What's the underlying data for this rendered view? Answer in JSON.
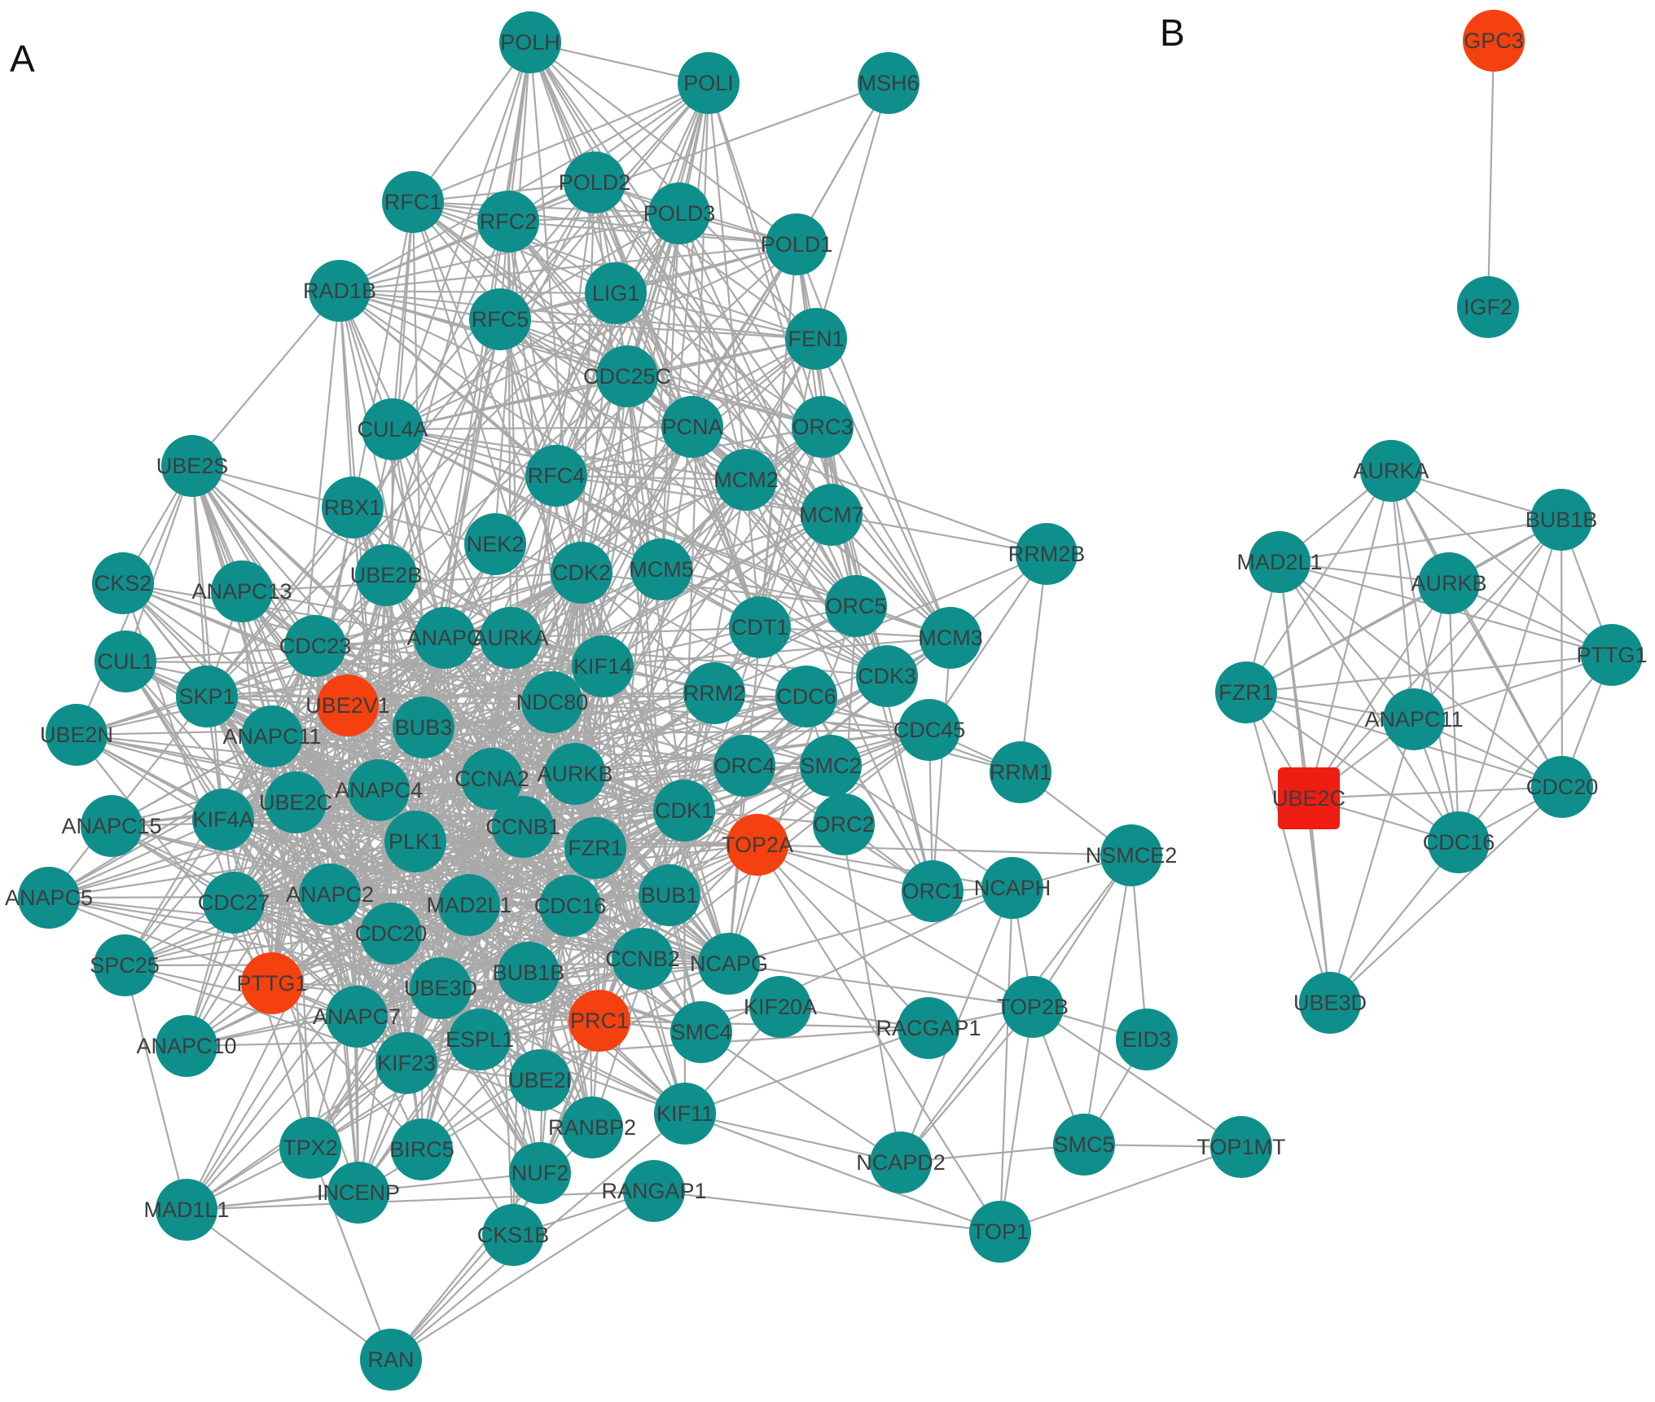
{
  "panels": [
    {
      "label": "A"
    },
    {
      "label": "B"
    }
  ],
  "colors": {
    "default_node": "#0e8f8c",
    "hub_node": "#f5400f",
    "hub_square": "#ef1c12",
    "edge": "#a9a9a9"
  },
  "network_a": {
    "nodes": [
      "POLH",
      "POLI",
      "MSH6",
      "RFC1",
      "POLD2",
      "RFC2",
      "POLD3",
      "POLD1",
      "RAD1B",
      "LIG1",
      "RFC5",
      "FEN1",
      "CDC25C",
      "CUL4A",
      "PCNA",
      "ORC3",
      "UBE2S",
      "RFC4",
      "MCM2",
      "RBX1",
      "MCM7",
      "RRM2B",
      "NEK2",
      "CKS2",
      "ANAPC13",
      "UBE2B",
      "CDK2",
      "MCM5",
      "ORC5",
      "CDT1",
      "ANAPC",
      "AURKA",
      "MCM3",
      "CUL1",
      "CDC23",
      "KIF14",
      "CDK3",
      "SKP1",
      "UBE2V1",
      "NDC80",
      "RRM2",
      "CDC6",
      "UBE2N",
      "ANAPC11",
      "BUB3",
      "CDC45",
      "ORC4",
      "SMC2",
      "CCNA2",
      "AURKB",
      "RRM1",
      "ANAPC4",
      "UBE2C",
      "ANAPC15",
      "KIF4A",
      "CDK1",
      "TOP2A",
      "ORC2",
      "CCNB1",
      "PLK1",
      "FZR1",
      "NSMCE2",
      "ANAPC5",
      "ORC1",
      "NCAPH",
      "CDC27",
      "ANAPC2",
      "MAD2L1",
      "CDC16",
      "BUB1",
      "CDC20",
      "SPC25",
      "CCNB2",
      "NCAPG",
      "BUB1B",
      "PTTG1",
      "UBE3D",
      "TOP2B",
      "PRC1",
      "KIF20A",
      "ANAPC7",
      "RACGAP1",
      "EID3",
      "SMC4",
      "ESPL1",
      "ANAPC10",
      "KIF23",
      "UBE2I",
      "KIF11",
      "RANBP2",
      "SMC5",
      "TOP1MT",
      "TPX2",
      "BIRC5",
      "NCAPD2",
      "NUF2",
      "INCENP",
      "RANGAP1",
      "MAD1L1",
      "TOP1",
      "CKS1B",
      "RAN"
    ],
    "highlighted": [
      "UBE2V1",
      "TOP2A",
      "PTTG1",
      "PRC1"
    ]
  },
  "network_b": {
    "nodes": [
      "GPC3",
      "IGF2",
      "AURKA",
      "BUB1B",
      "MAD2L1",
      "AURKB",
      "PTTG1",
      "FZR1",
      "ANAPC11",
      "UBE2C",
      "CDC20",
      "CDC16",
      "UBE3D"
    ],
    "highlighted": [
      "GPC3"
    ],
    "square": [
      "UBE2C"
    ]
  }
}
